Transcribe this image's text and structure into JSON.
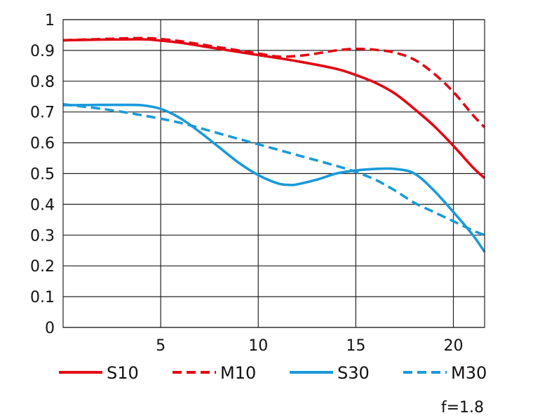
{
  "chart_data": {
    "type": "line",
    "xlim": [
      0,
      21.6
    ],
    "ylim": [
      0,
      1
    ],
    "x_ticks": [
      "5",
      "10",
      "15",
      "20"
    ],
    "x_tick_values": [
      5,
      10,
      15,
      20
    ],
    "y_ticks": [
      "0",
      "0.1",
      "0.2",
      "0.3",
      "0.4",
      "0.5",
      "0.6",
      "0.7",
      "0.8",
      "0.9",
      "1"
    ],
    "y_tick_values": [
      0,
      0.1,
      0.2,
      0.3,
      0.4,
      0.5,
      0.6,
      0.7,
      0.8,
      0.9,
      1.0
    ],
    "grid": true,
    "legend_position": "bottom",
    "annotation": "f=1.8",
    "series": [
      {
        "name": "S10",
        "color": "#e30613",
        "dash": "solid",
        "x": [
          0,
          2,
          4,
          5,
          6,
          8,
          10,
          12,
          14,
          15,
          16,
          17,
          18,
          19,
          20,
          21,
          21.6
        ],
        "y": [
          0.933,
          0.935,
          0.936,
          0.932,
          0.925,
          0.905,
          0.885,
          0.865,
          0.84,
          0.82,
          0.795,
          0.76,
          0.71,
          0.655,
          0.59,
          0.52,
          0.485
        ]
      },
      {
        "name": "M10",
        "color": "#e30613",
        "dash": "dashed",
        "x": [
          0,
          2,
          4,
          5,
          6,
          8,
          10,
          11,
          12,
          13,
          14,
          15,
          16,
          17,
          18,
          19,
          20,
          21,
          21.6
        ],
        "y": [
          0.933,
          0.937,
          0.94,
          0.937,
          0.93,
          0.91,
          0.89,
          0.88,
          0.882,
          0.89,
          0.9,
          0.905,
          0.902,
          0.893,
          0.87,
          0.825,
          0.765,
          0.69,
          0.65
        ]
      },
      {
        "name": "S30",
        "color": "#1a9ad9",
        "dash": "solid",
        "x": [
          0,
          2,
          3,
          4,
          5,
          6,
          7,
          8,
          9,
          10,
          11,
          11.6,
          12,
          13,
          14,
          15,
          16,
          17,
          18,
          19,
          20,
          21,
          21.6
        ],
        "y": [
          0.722,
          0.723,
          0.723,
          0.722,
          0.71,
          0.68,
          0.635,
          0.585,
          0.535,
          0.495,
          0.468,
          0.463,
          0.465,
          0.48,
          0.5,
          0.51,
          0.515,
          0.515,
          0.5,
          0.445,
          0.375,
          0.3,
          0.245
        ]
      },
      {
        "name": "M30",
        "color": "#1a9ad9",
        "dash": "dashed",
        "x": [
          0,
          2,
          4,
          6,
          8,
          10,
          12,
          14,
          15,
          16,
          17,
          18,
          19,
          20,
          21,
          21.6
        ],
        "y": [
          0.725,
          0.71,
          0.69,
          0.665,
          0.63,
          0.595,
          0.56,
          0.525,
          0.505,
          0.48,
          0.445,
          0.405,
          0.375,
          0.345,
          0.315,
          0.3
        ]
      }
    ]
  }
}
